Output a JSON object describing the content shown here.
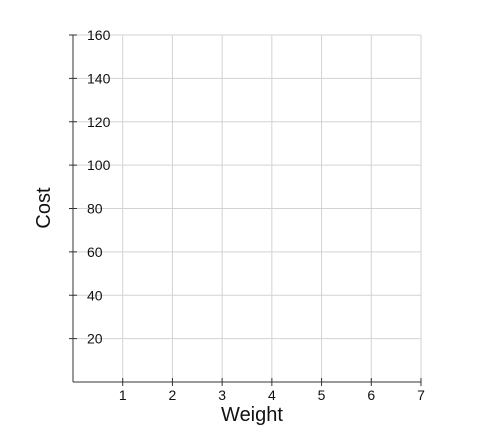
{
  "chart_data": {
    "type": "scatter",
    "title": "",
    "xlabel": "Weight",
    "ylabel": "Cost",
    "xlim": [
      0,
      7
    ],
    "ylim": [
      0,
      160
    ],
    "x_ticks": [
      1,
      2,
      3,
      4,
      5,
      6,
      7
    ],
    "y_ticks": [
      20,
      40,
      60,
      80,
      100,
      120,
      140,
      160
    ],
    "x_tick_labels": [
      "1",
      "2",
      "3",
      "4",
      "5",
      "6",
      "7"
    ],
    "y_tick_labels": [
      "20",
      "40",
      "60",
      "80",
      "100",
      "120",
      "140",
      "160"
    ],
    "grid": true,
    "series": [],
    "colors": {
      "grid": "#d3d3d3",
      "axis": "#333333",
      "text": "#111111"
    }
  }
}
